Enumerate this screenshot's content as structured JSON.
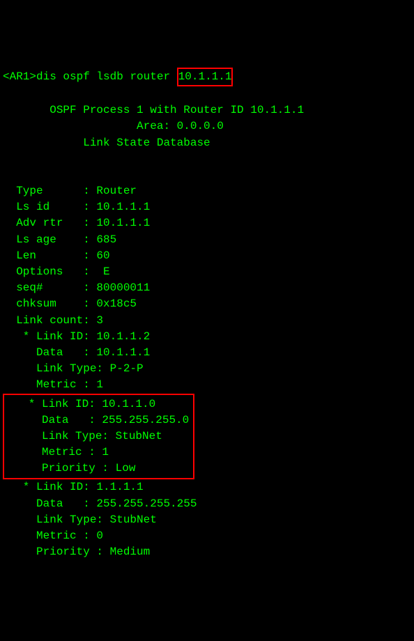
{
  "prompt_prefix": "<AR1>",
  "command_part1": "dis ospf lsdb router ",
  "command_highlight": "10.1.1.1",
  "header": {
    "line1": "       OSPF Process 1 with Router ID 10.1.1.1",
    "line2": "                    Area: 0.0.0.0",
    "line3": "            Link State Database"
  },
  "fields": {
    "type_label": "  Type      : ",
    "type_value": "Router",
    "lsid_label": "  Ls id     : ",
    "lsid_value": "10.1.1.1",
    "advrtr_label": "  Adv rtr   : ",
    "advrtr_value": "10.1.1.1",
    "lsage_label": "  Ls age    : ",
    "lsage_value": "685",
    "len_label": "  Len       : ",
    "len_value": "60",
    "options_label": "  Options   :  ",
    "options_value": "E",
    "seq_label": "  seq#      : ",
    "seq_value": "80000011",
    "chksum_label": "  chksum    : ",
    "chksum_value": "0x18c5",
    "linkcount_label": "  Link count: ",
    "linkcount_value": "3"
  },
  "link1": {
    "linkid_label": "   * Link ID: ",
    "linkid_value": "10.1.1.2",
    "data_label": "     Data   : ",
    "data_value": "10.1.1.1",
    "linktype_label": "     Link Type: ",
    "linktype_value": "P-2-P",
    "metric_label": "     Metric : ",
    "metric_value": "1"
  },
  "link2": {
    "linkid_label": "   * Link ID: ",
    "linkid_value": "10.1.1.0",
    "data_label": "     Data   : ",
    "data_value": "255.255.255.0",
    "linktype_label": "     Link Type: ",
    "linktype_value": "StubNet",
    "metric_label": "     Metric : ",
    "metric_value": "1",
    "priority_label": "     Priority : ",
    "priority_value": "Low"
  },
  "link3": {
    "linkid_label": "   * Link ID: ",
    "linkid_value": "1.1.1.1",
    "data_label": "     Data   : ",
    "data_value": "255.255.255.255",
    "linktype_label": "     Link Type: ",
    "linktype_value": "StubNet",
    "metric_label": "     Metric : ",
    "metric_value": "0",
    "priority_label": "     Priority : ",
    "priority_value": "Medium"
  },
  "colors": {
    "background": "#000000",
    "text": "#00ff00",
    "highlight_border": "#ff0000"
  }
}
